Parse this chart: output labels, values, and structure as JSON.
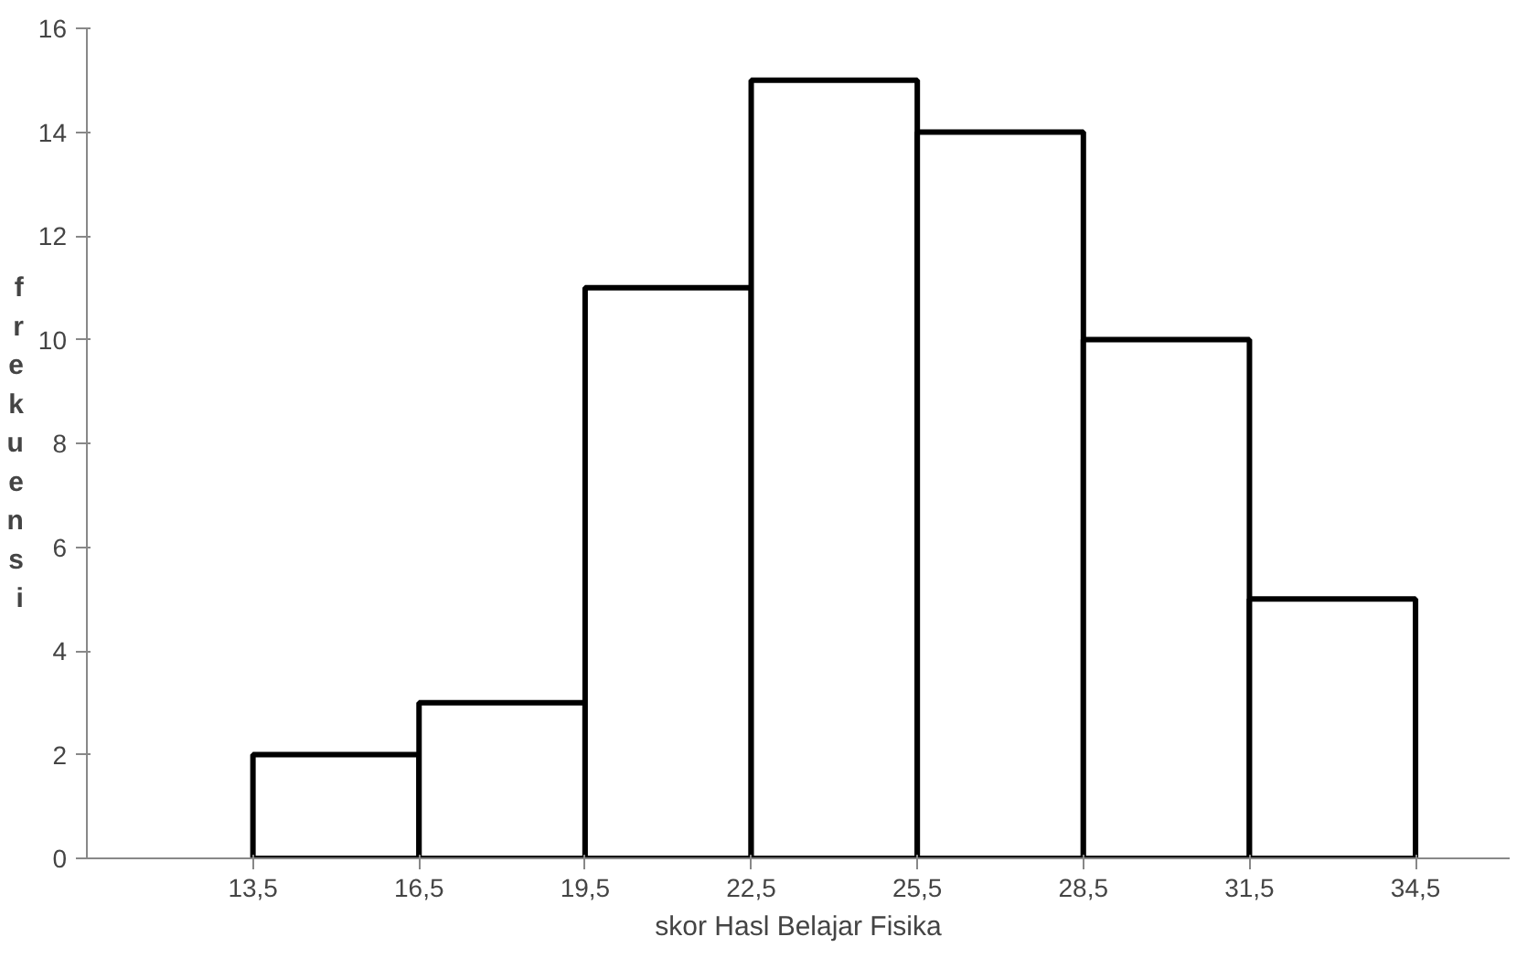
{
  "chart_data": {
    "type": "histogram",
    "xlabel": "skor Hasl Belajar Fisika",
    "ylabel": "frekuensi",
    "bins": [
      13.5,
      16.5,
      19.5,
      22.5,
      25.5,
      28.5,
      31.5,
      34.5
    ],
    "values": [
      2,
      3,
      11,
      15,
      14,
      10,
      5
    ],
    "color": "#ffffff",
    "xlim": [
      10.5,
      36.2
    ],
    "xticks": [
      {
        "value": 13.5,
        "label": "13,5"
      },
      {
        "value": 16.5,
        "label": "16,5"
      },
      {
        "value": 19.5,
        "label": "19,5"
      },
      {
        "value": 22.5,
        "label": "22,5"
      },
      {
        "value": 25.5,
        "label": "25,5"
      },
      {
        "value": 28.5,
        "label": "28,5"
      },
      {
        "value": 31.5,
        "label": "31,5"
      },
      {
        "value": 34.5,
        "label": "34,5"
      }
    ],
    "ylim": [
      0,
      16
    ],
    "yticks": [
      0,
      2,
      4,
      6,
      8,
      10,
      12,
      14,
      16
    ],
    "grid": false
  }
}
